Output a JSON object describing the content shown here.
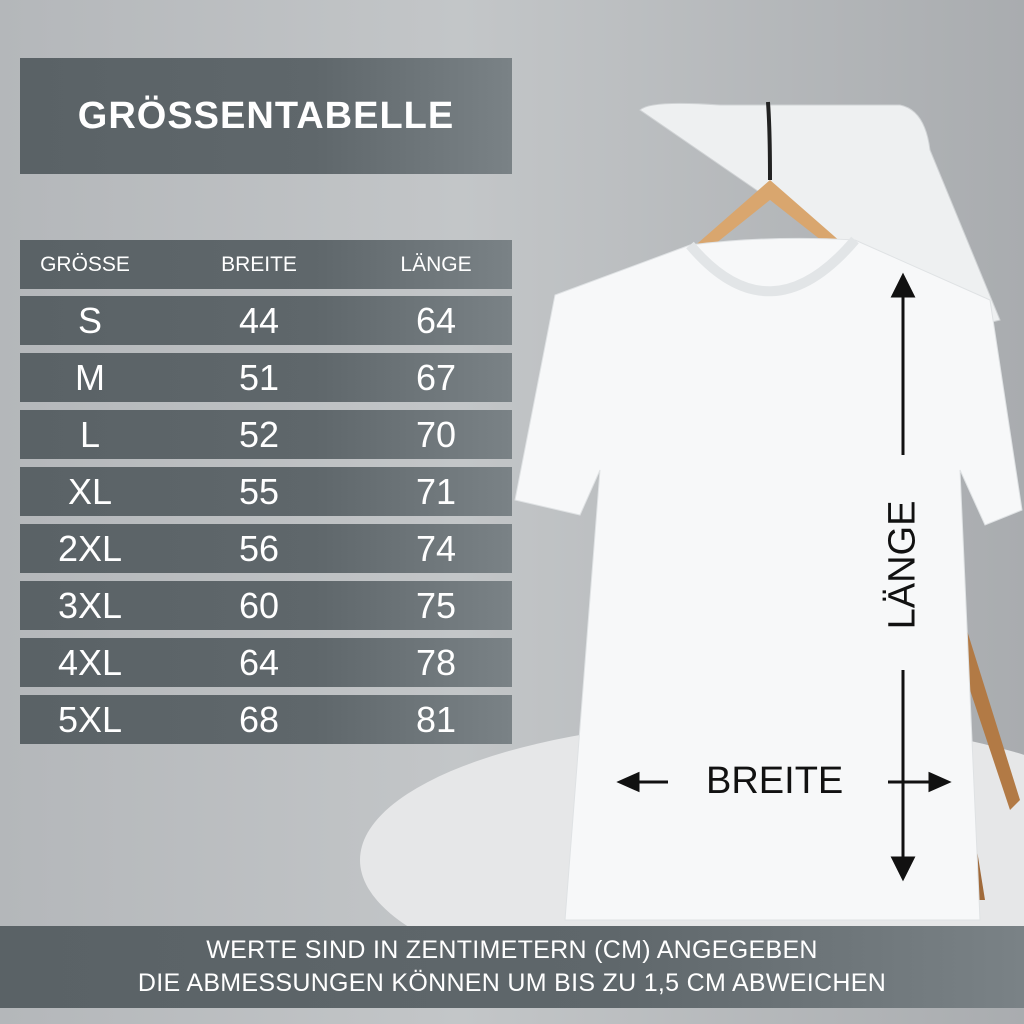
{
  "title": "GRÖSSENTABELLE",
  "table": {
    "headers": [
      "GRÖSSE",
      "BREITE",
      "LÄNGE"
    ],
    "rows": [
      [
        "S",
        "44",
        "64"
      ],
      [
        "M",
        "51",
        "67"
      ],
      [
        "L",
        "52",
        "70"
      ],
      [
        "XL",
        "55",
        "71"
      ],
      [
        "2XL",
        "56",
        "74"
      ],
      [
        "3XL",
        "60",
        "75"
      ],
      [
        "4XL",
        "64",
        "78"
      ],
      [
        "5XL",
        "68",
        "81"
      ]
    ]
  },
  "diagram": {
    "length_label": "LÄNGE",
    "width_label": "BREITE"
  },
  "footer": {
    "line1": "WERTE SIND IN ZENTIMETERN (CM) ANGEGEBEN",
    "line2": "DIE ABMESSUNGEN KÖNNEN UM BIS ZU 1,5 CM ABWEICHEN"
  },
  "colors": {
    "bar": "#5f676b",
    "text": "#ffffff"
  }
}
